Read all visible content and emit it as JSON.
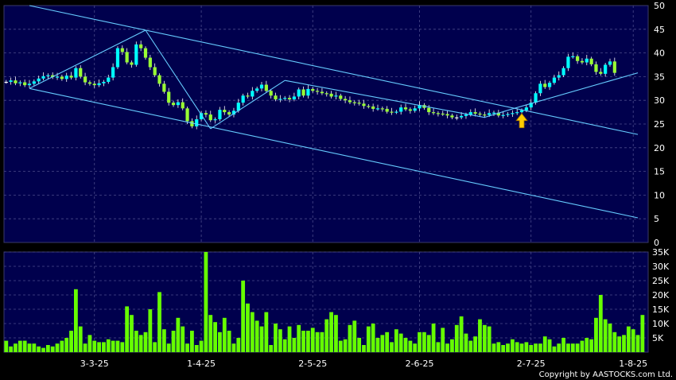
{
  "copyright": "Copyright by AASTOCKS.com Ltd.",
  "chart_data": [
    {
      "type": "candlestick",
      "panel": "price",
      "y_ticks": [
        0,
        5,
        10,
        15,
        20,
        25,
        30,
        35,
        40,
        45,
        50
      ],
      "ylim": [
        0,
        50
      ],
      "x_tick_labels": [
        "3-3-25",
        "1-4-25",
        "2-5-25",
        "2-6-25",
        "2-7-25",
        "1-8-25"
      ],
      "x_tick_index": [
        19,
        42,
        66,
        89,
        113,
        135
      ],
      "grid": true,
      "up_color": "#00ffff",
      "down_color": "#99ff33",
      "flat_color": "#ffffff",
      "trendline_color": "#66ccff",
      "arrow_color": "#ffcc00",
      "arrow_index": 111,
      "closes": [
        33.9,
        34.2,
        33.6,
        33.8,
        33.2,
        33.5,
        34.0,
        34.6,
        35.1,
        35.3,
        34.9,
        35.0,
        34.5,
        35.2,
        34.8,
        36.8,
        35.0,
        33.8,
        33.5,
        33.2,
        33.6,
        33.9,
        34.8,
        37.0,
        41.0,
        40.2,
        38.0,
        37.5,
        41.8,
        41.0,
        39.0,
        37.0,
        35.3,
        33.5,
        31.8,
        29.5,
        29.0,
        29.6,
        28.3,
        25.6,
        24.5,
        26.0,
        27.3,
        27.0,
        25.8,
        26.0,
        28.0,
        27.5,
        27.0,
        27.8,
        29.5,
        31.0,
        30.8,
        32.0,
        32.5,
        33.3,
        32.0,
        31.0,
        30.2,
        30.3,
        30.5,
        30.2,
        30.8,
        32.3,
        31.0,
        32.4,
        32.0,
        31.8,
        31.5,
        31.4,
        30.8,
        31.0,
        30.3,
        30.0,
        29.6,
        29.5,
        29.3,
        28.8,
        28.7,
        28.2,
        28.3,
        28.2,
        27.6,
        27.5,
        27.6,
        28.5,
        28.1,
        27.8,
        28.3,
        29.0,
        28.4,
        27.5,
        27.3,
        27.2,
        27.1,
        26.8,
        26.4,
        26.4,
        26.7,
        27.0,
        27.5,
        27.2,
        27.0,
        26.9,
        27.3,
        27.4,
        26.8,
        26.9,
        27.1,
        27.3,
        27.5,
        27.9,
        28.5,
        29.5,
        31.5,
        33.5,
        32.8,
        33.7,
        34.8,
        35.3,
        36.8,
        39.2,
        39.3,
        38.3,
        38.0,
        38.8,
        37.6,
        36.0,
        35.6,
        37.5,
        38.2,
        35.8
      ],
      "trendlines": [
        {
          "from": [
            5,
            50.0
          ],
          "to": [
            136,
            22.8
          ]
        },
        {
          "from": [
            5,
            32.5
          ],
          "to": [
            136,
            5.2
          ]
        },
        {
          "from": [
            5,
            32.5
          ],
          "to": [
            30,
            44.8
          ]
        },
        {
          "from": [
            30,
            44.8
          ],
          "to": [
            44,
            24.0
          ]
        },
        {
          "from": [
            44,
            24.0
          ],
          "to": [
            60,
            34.2
          ]
        },
        {
          "from": [
            60,
            34.2
          ],
          "to": [
            103,
            26.4
          ]
        },
        {
          "from": [
            103,
            26.4
          ],
          "to": [
            109,
            28.2
          ]
        },
        {
          "from": [
            109,
            28.2
          ],
          "to": [
            136,
            35.8
          ]
        }
      ]
    },
    {
      "type": "bar",
      "panel": "volume",
      "y_ticks": [
        "5K",
        "10K",
        "15K",
        "20K",
        "25K",
        "30K",
        "35K"
      ],
      "ylim": [
        0,
        35000
      ],
      "grid": true,
      "bar_color": "#66ff00",
      "values": [
        4,
        2,
        3,
        4,
        4,
        3,
        3,
        2,
        1.5,
        2.5,
        2,
        3,
        4,
        5,
        7.5,
        22,
        9,
        3,
        6,
        4,
        3.5,
        3.5,
        4.5,
        4,
        4,
        3.5,
        16,
        13,
        7.5,
        6,
        7,
        15,
        3.5,
        21,
        8,
        3,
        7.5,
        12,
        9,
        3,
        7.5,
        2.5,
        4,
        35,
        13,
        10.5,
        7,
        12,
        7.5,
        3,
        5,
        25,
        17,
        14,
        11,
        9,
        14,
        2.5,
        10,
        8,
        4.5,
        9,
        5,
        9.5,
        7.5,
        7.5,
        8.5,
        7,
        7,
        11.5,
        14,
        13,
        4,
        4.5,
        9.5,
        11,
        5,
        2.5,
        9,
        10,
        5,
        6,
        7,
        3.5,
        8,
        6.5,
        5,
        4,
        3,
        7,
        7,
        6,
        10,
        3.5,
        8.5,
        3,
        4.5,
        9.5,
        12.5,
        6.5,
        4,
        5.5,
        11.5,
        9.5,
        9,
        3,
        3.5,
        2.5,
        3,
        4.5,
        3.5,
        3,
        3.5,
        2.5,
        3,
        3,
        5.5,
        4.5,
        2,
        3,
        5,
        3,
        3,
        3,
        4,
        5,
        4.5,
        12,
        20,
        11.5,
        10,
        7,
        5.5,
        6,
        9,
        8,
        6,
        13
      ],
      "x_tick_labels": [
        "3-3-25",
        "1-4-25",
        "2-5-25",
        "2-6-25",
        "2-7-25",
        "1-8-25"
      ]
    }
  ]
}
